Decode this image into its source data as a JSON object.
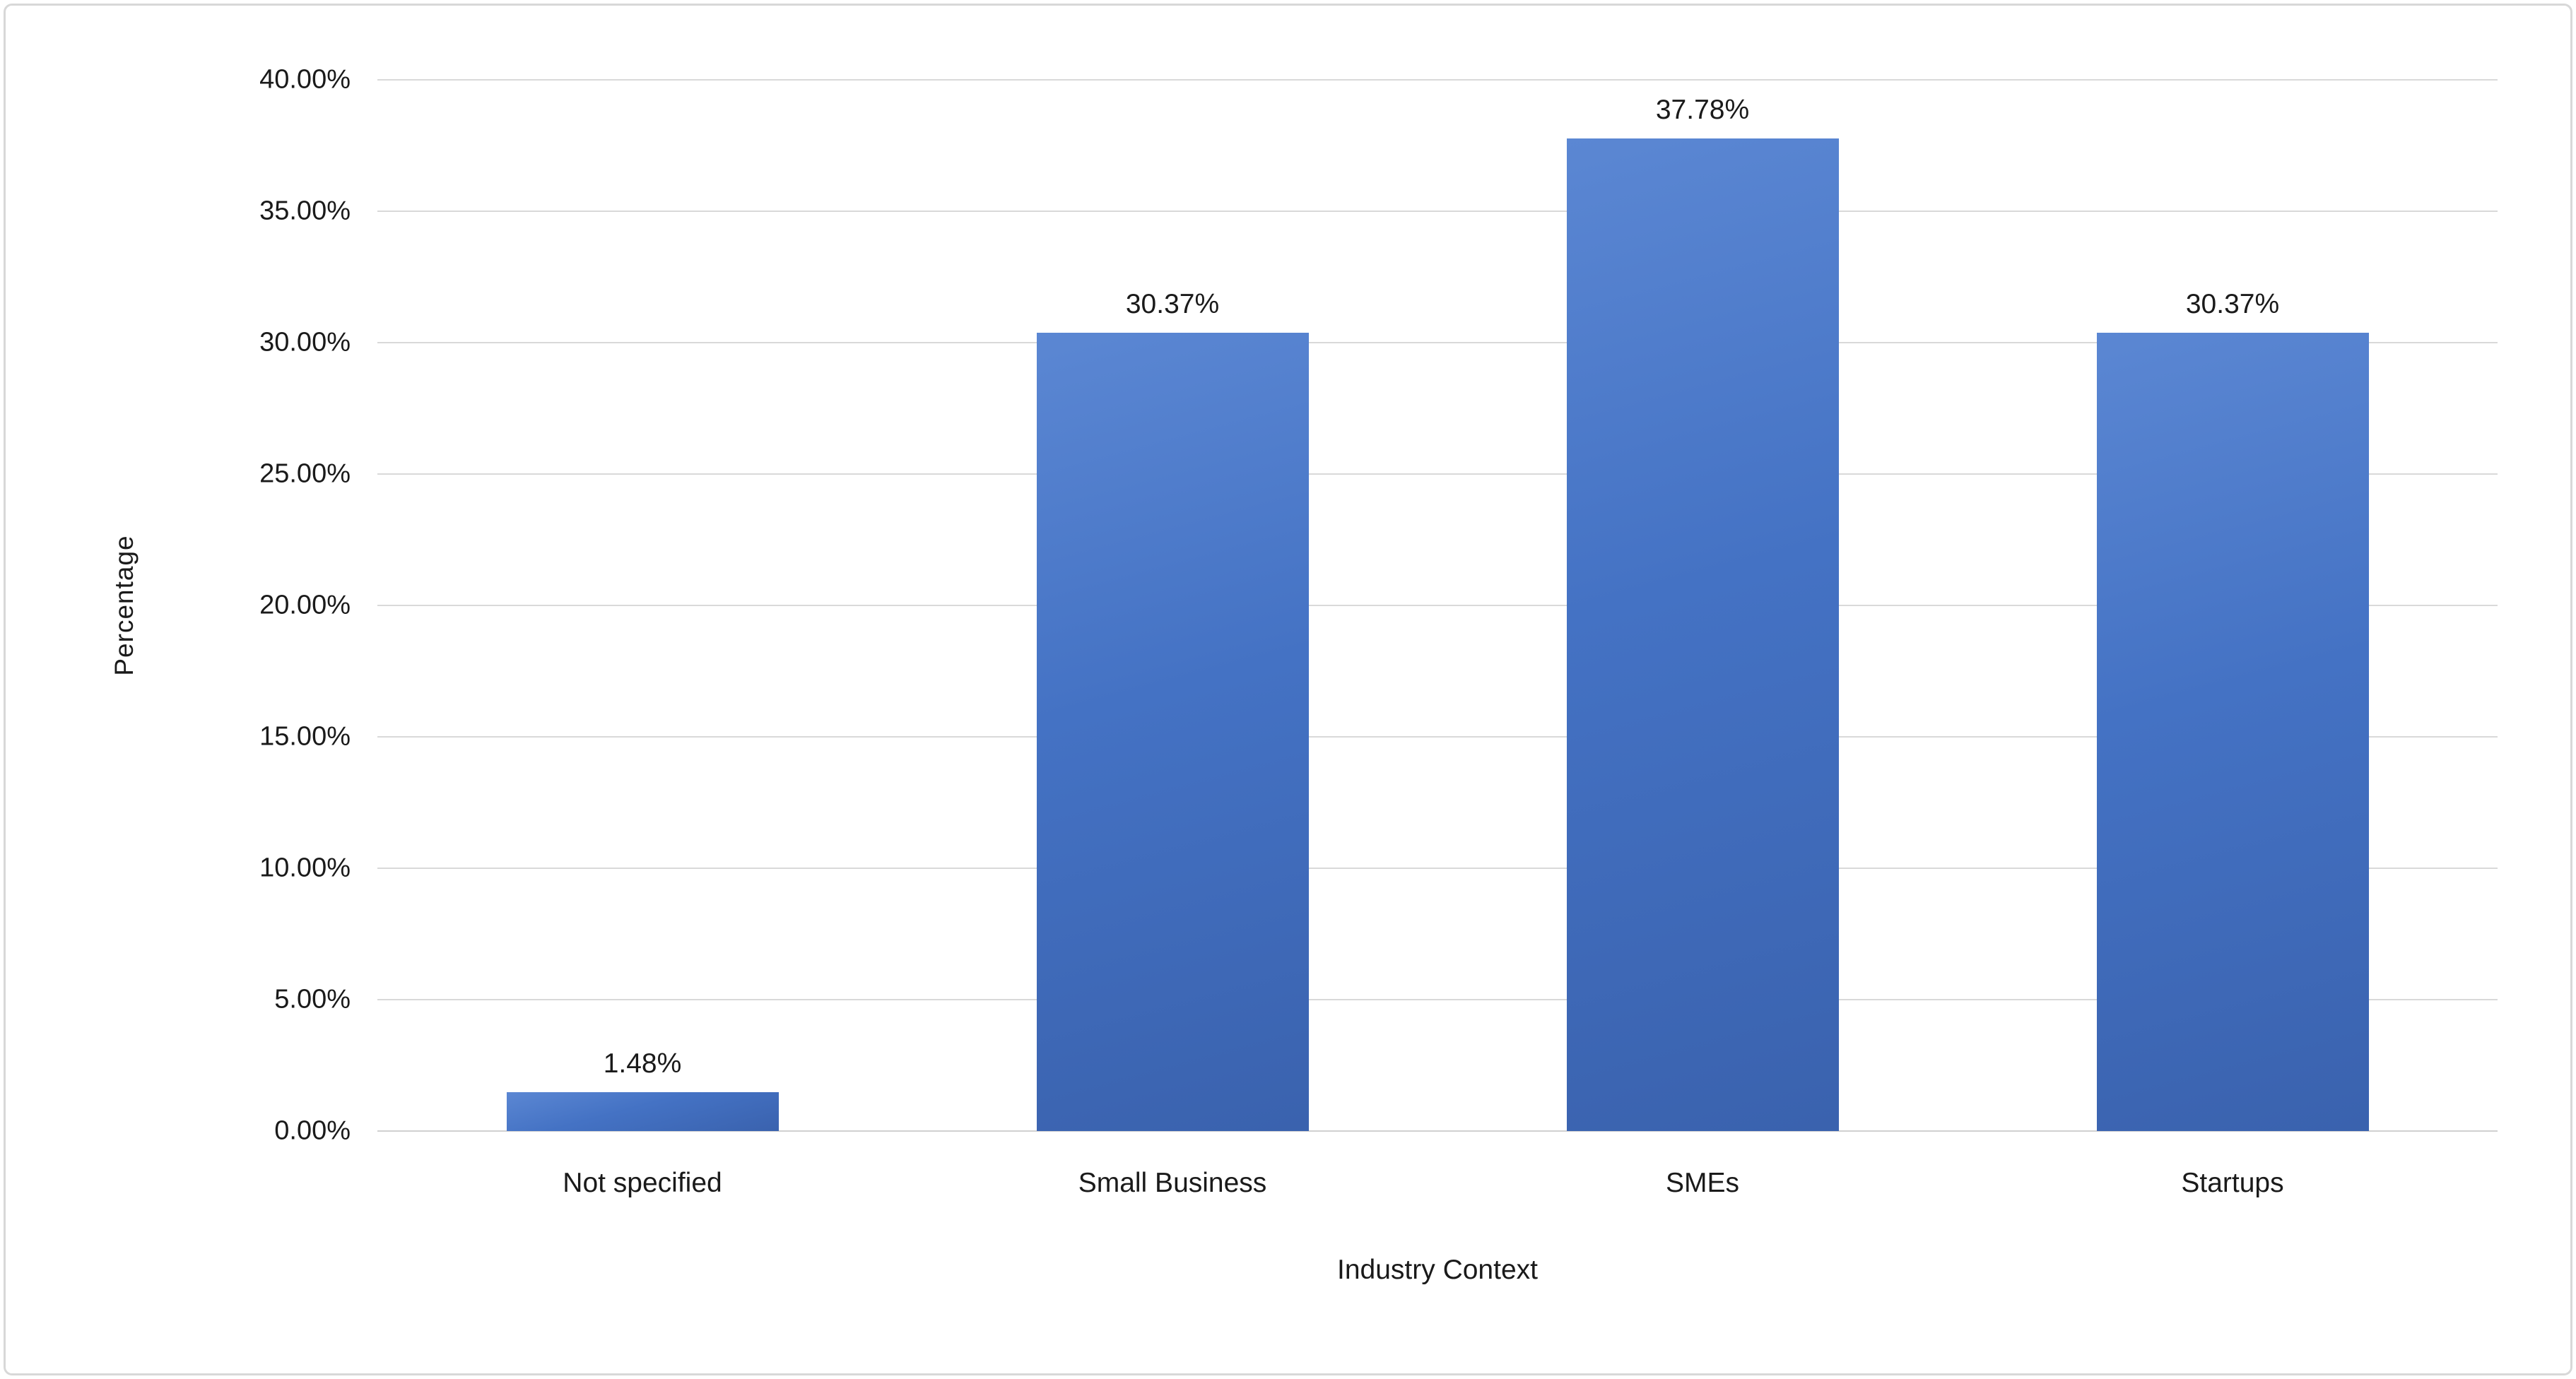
{
  "chart_data": {
    "type": "bar",
    "title": "",
    "xlabel": "Industry Context",
    "ylabel": "Percentage",
    "categories": [
      "Not specified",
      "Small Business",
      "SMEs",
      "Startups"
    ],
    "values": [
      1.48,
      30.37,
      37.78,
      30.37
    ],
    "value_labels": [
      "1.48%",
      "30.37%",
      "37.78%",
      "30.37%"
    ],
    "ylim": [
      0,
      40
    ],
    "y_ticks": [
      {
        "value": 0,
        "label": "0.00%"
      },
      {
        "value": 5,
        "label": "5.00%"
      },
      {
        "value": 10,
        "label": "10.00%"
      },
      {
        "value": 15,
        "label": "15.00%"
      },
      {
        "value": 20,
        "label": "20.00%"
      },
      {
        "value": 25,
        "label": "25.00%"
      },
      {
        "value": 30,
        "label": "30.00%"
      },
      {
        "value": 35,
        "label": "35.00%"
      },
      {
        "value": 40,
        "label": "40.00%"
      }
    ],
    "grid": "horizontal",
    "legend": "none",
    "bar_color": "#4472C4",
    "gridline_color": "#d9d9d9",
    "baseline_color": "#d0d0d0",
    "background_color": "#ffffff",
    "border_color": "#d8d8d8",
    "text_color": "#1a1a1a"
  }
}
